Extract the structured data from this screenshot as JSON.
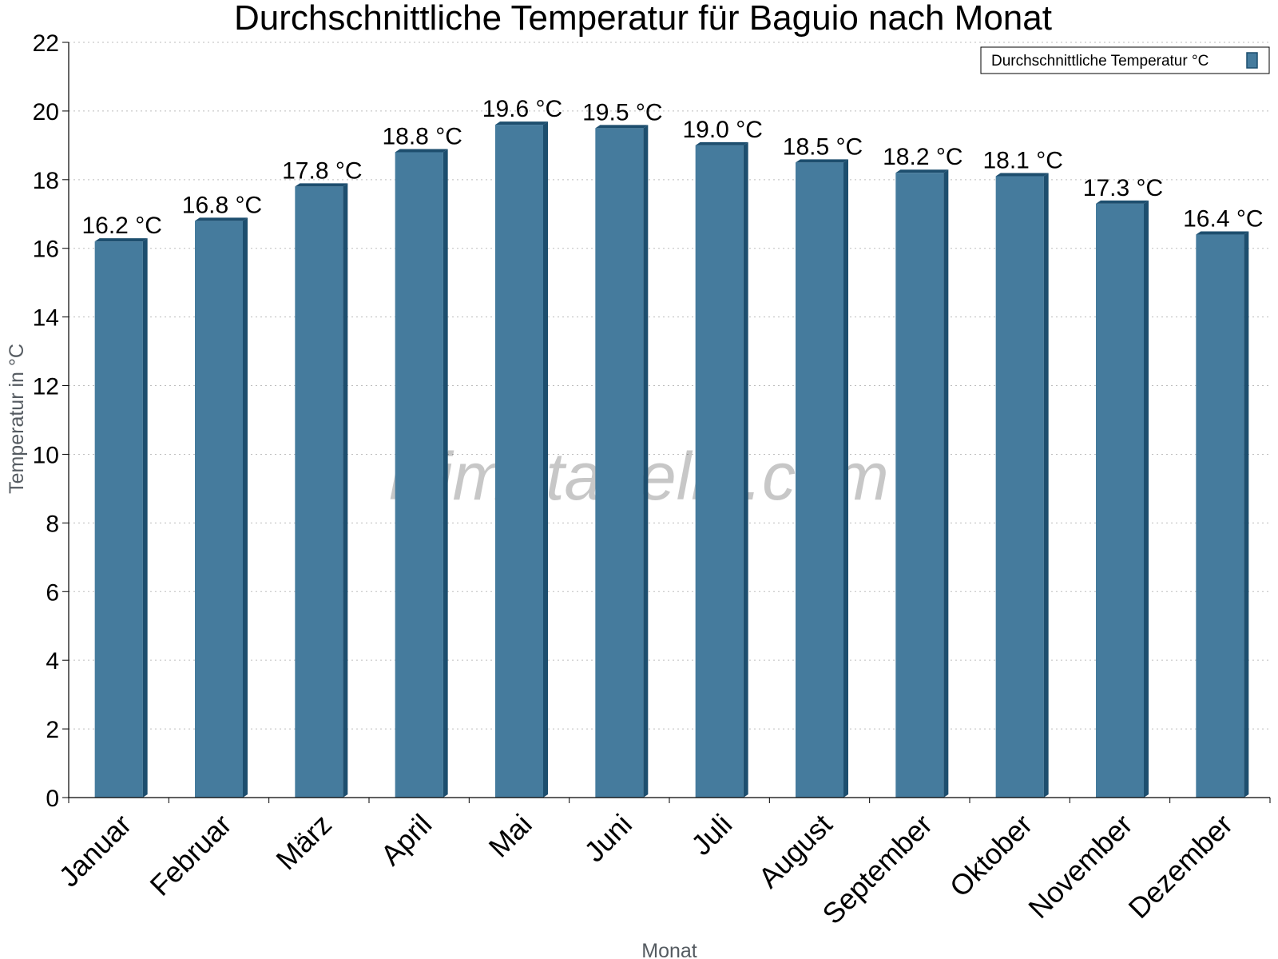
{
  "chart_data": {
    "type": "bar",
    "title": "Durchschnittliche Temperatur für Baguio nach Monat",
    "xlabel": "Monat",
    "ylabel": "Temperatur in °C",
    "ylim": [
      0,
      22
    ],
    "yticks": [
      0,
      2,
      4,
      6,
      8,
      10,
      12,
      14,
      16,
      18,
      20,
      22
    ],
    "grid": true,
    "legend_position": "top-right",
    "categories": [
      "Januar",
      "Februar",
      "März",
      "April",
      "Mai",
      "Juni",
      "Juli",
      "August",
      "September",
      "Oktober",
      "November",
      "Dezember"
    ],
    "series": [
      {
        "name": "Durchschnittliche Temperatur °C",
        "values": [
          16.2,
          16.8,
          17.8,
          18.8,
          19.6,
          19.5,
          19.0,
          18.5,
          18.2,
          18.1,
          17.3,
          16.4
        ],
        "labels": [
          "16.2 °C",
          "16.8 °C",
          "17.8 °C",
          "18.8 °C",
          "19.6 °C",
          "19.5 °C",
          "19.0 °C",
          "18.5 °C",
          "18.2 °C",
          "18.1 °C",
          "17.3 °C",
          "16.4 °C"
        ],
        "color": "#457b9d",
        "edge_color": "#1d4e6e"
      }
    ],
    "watermark": "klimatabelle.com"
  }
}
